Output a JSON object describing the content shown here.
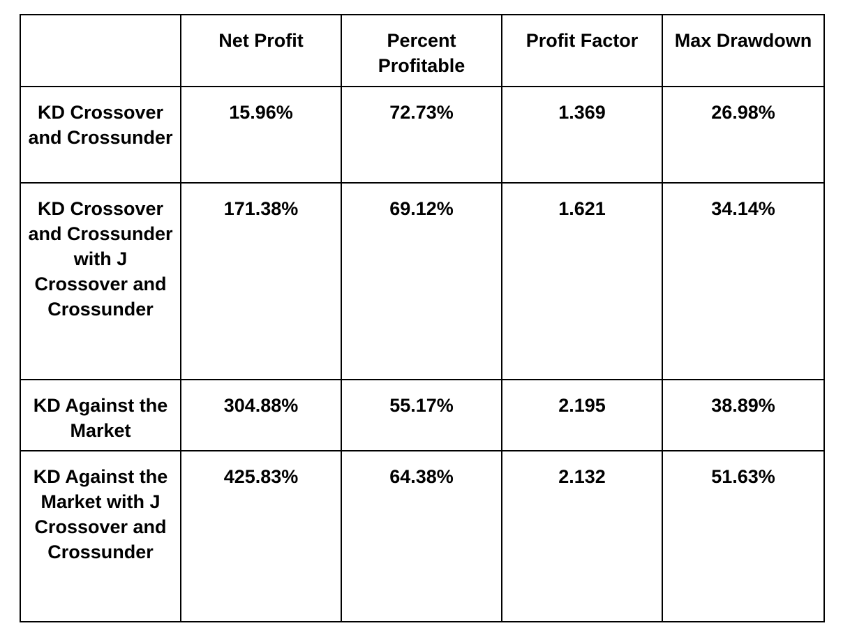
{
  "table": {
    "headers": [
      "",
      "Net Profit",
      "Percent Profitable",
      "Profit Factor",
      "Max Drawdown"
    ],
    "rows": [
      {
        "strategy": "KD Crossover and Crossunder",
        "net_profit": "15.96%",
        "percent_profitable": "72.73%",
        "profit_factor": "1.369",
        "max_drawdown": "26.98%"
      },
      {
        "strategy": "KD Crossover and Crossunder with J Crossover and Crossunder",
        "net_profit": "171.38%",
        "percent_profitable": "69.12%",
        "profit_factor": "1.621",
        "max_drawdown": "34.14%"
      },
      {
        "strategy": "KD Against the Market",
        "net_profit": "304.88%",
        "percent_profitable": "55.17%",
        "profit_factor": "2.195",
        "max_drawdown": "38.89%"
      },
      {
        "strategy": "KD Against the Market with J Crossover and Crossunder",
        "net_profit": "425.83%",
        "percent_profitable": "64.38%",
        "profit_factor": "2.132",
        "max_drawdown": "51.63%"
      }
    ]
  }
}
